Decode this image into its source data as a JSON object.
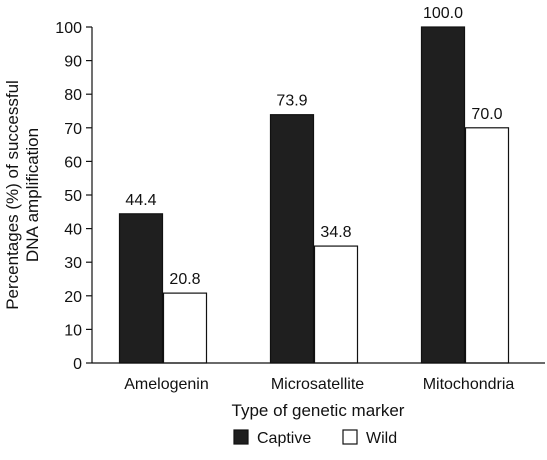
{
  "chart_data": {
    "type": "bar",
    "categories": [
      "Amelogenin",
      "Microsatellite",
      "Mitochondria"
    ],
    "series": [
      {
        "name": "Captive",
        "values": [
          44.4,
          73.9,
          100.0
        ],
        "labels": [
          "44.4",
          "73.9",
          "100.0"
        ],
        "color": "#1f1f1f"
      },
      {
        "name": "Wild",
        "values": [
          20.8,
          34.8,
          70.0
        ],
        "labels": [
          "20.8",
          "34.8",
          "70.0"
        ],
        "color": "#ffffff"
      }
    ],
    "xlabel": "Type of genetic marker",
    "ylabel_lines": [
      "Percentages (%) of successful",
      "DNA amplification"
    ],
    "ylim": [
      0,
      100
    ],
    "yticks": [
      0,
      10,
      20,
      30,
      40,
      50,
      60,
      70,
      80,
      90,
      100
    ],
    "ytick_labels": [
      "0",
      "10",
      "20",
      "30",
      "40",
      "50",
      "60",
      "70",
      "80",
      "90",
      "100"
    ],
    "grid": false,
    "legend_position": "bottom"
  }
}
